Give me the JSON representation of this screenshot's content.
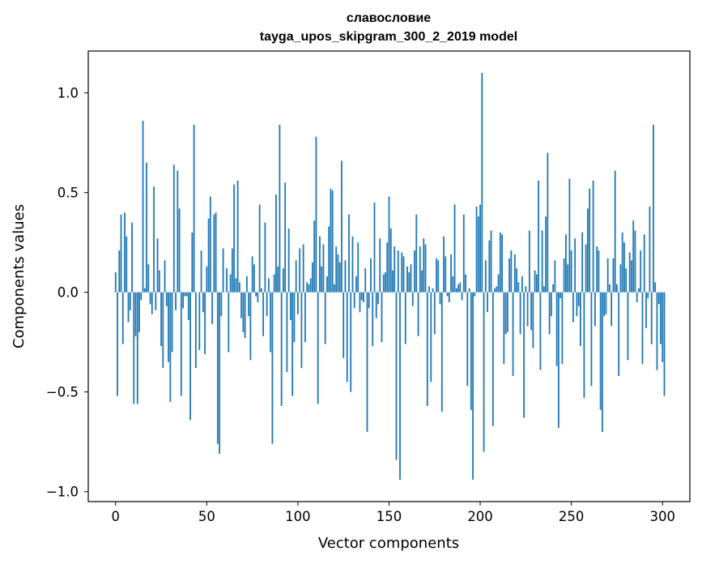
{
  "chart_data": {
    "type": "bar",
    "title": "славословие",
    "subtitle": "tayga_upos_skipgram_300_2_2019 model",
    "xlabel": "Vector components",
    "ylabel": "Components values",
    "xlim": [
      -15,
      315
    ],
    "ylim": [
      -1.05,
      1.21
    ],
    "xticks": [
      0,
      50,
      100,
      150,
      200,
      250,
      300
    ],
    "yticks": [
      -1.0,
      -0.5,
      0.0,
      0.5,
      1.0
    ],
    "xtick_labels": [
      "0",
      "50",
      "100",
      "150",
      "200",
      "250",
      "300"
    ],
    "ytick_labels": [
      "−1.0",
      "−0.5",
      "0.0",
      "0.5",
      "1.0"
    ],
    "grid": false,
    "colors": {
      "bar": "#1f77b4",
      "axis": "#000000",
      "background": "#ffffff"
    },
    "x_start": 0,
    "values": [
      0.1,
      -0.52,
      0.21,
      0.39,
      -0.26,
      0.4,
      0.28,
      -0.15,
      -0.09,
      0.35,
      -0.56,
      -0.22,
      -0.56,
      -0.2,
      -0.04,
      0.86,
      0.02,
      0.65,
      0.14,
      -0.06,
      -0.11,
      0.53,
      -0.09,
      0.27,
      0.11,
      -0.27,
      -0.38,
      0.16,
      -0.07,
      -0.35,
      -0.55,
      -0.3,
      0.64,
      -0.09,
      0.61,
      0.42,
      -0.52,
      -0.08,
      -0.02,
      -0.02,
      -0.14,
      -0.64,
      0.3,
      0.84,
      -0.38,
      0.0,
      -0.29,
      0.21,
      -0.1,
      -0.31,
      0.13,
      0.37,
      0.48,
      -0.16,
      0.39,
      0.4,
      -0.76,
      -0.81,
      -0.12,
      0.22,
      0.0,
      0.12,
      -0.3,
      0.09,
      0.22,
      0.54,
      0.07,
      0.56,
      0.05,
      -0.13,
      -0.2,
      -0.23,
      0.08,
      -0.12,
      -0.34,
      0.18,
      0.14,
      -0.02,
      -0.05,
      0.44,
      0.02,
      -0.22,
      0.35,
      -0.12,
      0.07,
      -0.3,
      -0.76,
      0.09,
      0.49,
      0.13,
      0.84,
      -0.57,
      0.12,
      0.55,
      -0.4,
      0.32,
      -0.14,
      -0.52,
      -0.25,
      0.16,
      -0.11,
      0.22,
      -0.38,
      0.24,
      -0.25,
      0.05,
      0.04,
      0.07,
      0.15,
      0.36,
      0.78,
      -0.56,
      0.28,
      0.13,
      0.24,
      -0.26,
      0.08,
      0.33,
      0.52,
      0.51,
      0.04,
      0.23,
      0.19,
      0.15,
      0.66,
      -0.33,
      0.16,
      -0.45,
      0.39,
      -0.5,
      0.28,
      -0.08,
      0.08,
      0.25,
      -0.1,
      -0.04,
      -0.05,
      0.12,
      -0.7,
      -0.08,
      0.17,
      -0.27,
      0.45,
      -0.13,
      -0.06,
      0.27,
      -0.25,
      0.09,
      0.1,
      0.25,
      0.48,
      0.32,
      0.11,
      0.23,
      -0.84,
      0.21,
      -0.94,
      0.2,
      0.18,
      -0.26,
      0.13,
      0.1,
      0.14,
      -0.07,
      0.21,
      0.39,
      -0.22,
      0.23,
      0.11,
      0.27,
      0.24,
      -0.57,
      0.03,
      -0.45,
      0.02,
      -0.21,
      0.17,
      0.16,
      -0.06,
      -0.6,
      0.28,
      0.18,
      -0.02,
      -0.05,
      0.19,
      0.08,
      0.44,
      0.02,
      0.04,
      0.05,
      -0.04,
      0.39,
      0.09,
      -0.47,
      0.02,
      -0.59,
      -0.94,
      -0.02,
      0.43,
      0.38,
      0.44,
      1.1,
      -0.8,
      0.16,
      -0.1,
      0.26,
      0.31,
      -0.67,
      0.02,
      0.03,
      0.09,
      0.3,
      0.29,
      -0.36,
      -0.21,
      -0.2,
      0.17,
      0.21,
      -0.42,
      0.19,
      0.12,
      0.05,
      -0.21,
      0.08,
      -0.63,
      0.03,
      -0.17,
      0.31,
      -0.19,
      -0.28,
      0.11,
      0.09,
      0.56,
      -0.39,
      0.31,
      0.03,
      0.38,
      0.7,
      -0.21,
      -0.12,
      0.04,
      0.16,
      -0.37,
      -0.68,
      -0.03,
      -0.36,
      0.17,
      0.29,
      0.14,
      0.57,
      0.21,
      -0.15,
      0.27,
      -0.12,
      -0.07,
      -0.27,
      0.3,
      -0.53,
      0.24,
      0.42,
      0.52,
      -0.47,
      0.56,
      -0.17,
      0.23,
      0.21,
      -0.59,
      -0.7,
      -0.12,
      -0.11,
      0.17,
      0.04,
      -0.17,
      0.17,
      0.61,
      0.04,
      -0.42,
      0.14,
      0.3,
      0.25,
      0.12,
      -0.34,
      0.2,
      0.16,
      0.36,
      0.31,
      -0.05,
      0.02,
      0.21,
      -0.36,
      0.29,
      -0.18,
      -0.03,
      0.43,
      -0.26,
      0.84,
      0.05,
      -0.39,
      -0.06,
      -0.26,
      -0.35,
      -0.52
    ]
  }
}
